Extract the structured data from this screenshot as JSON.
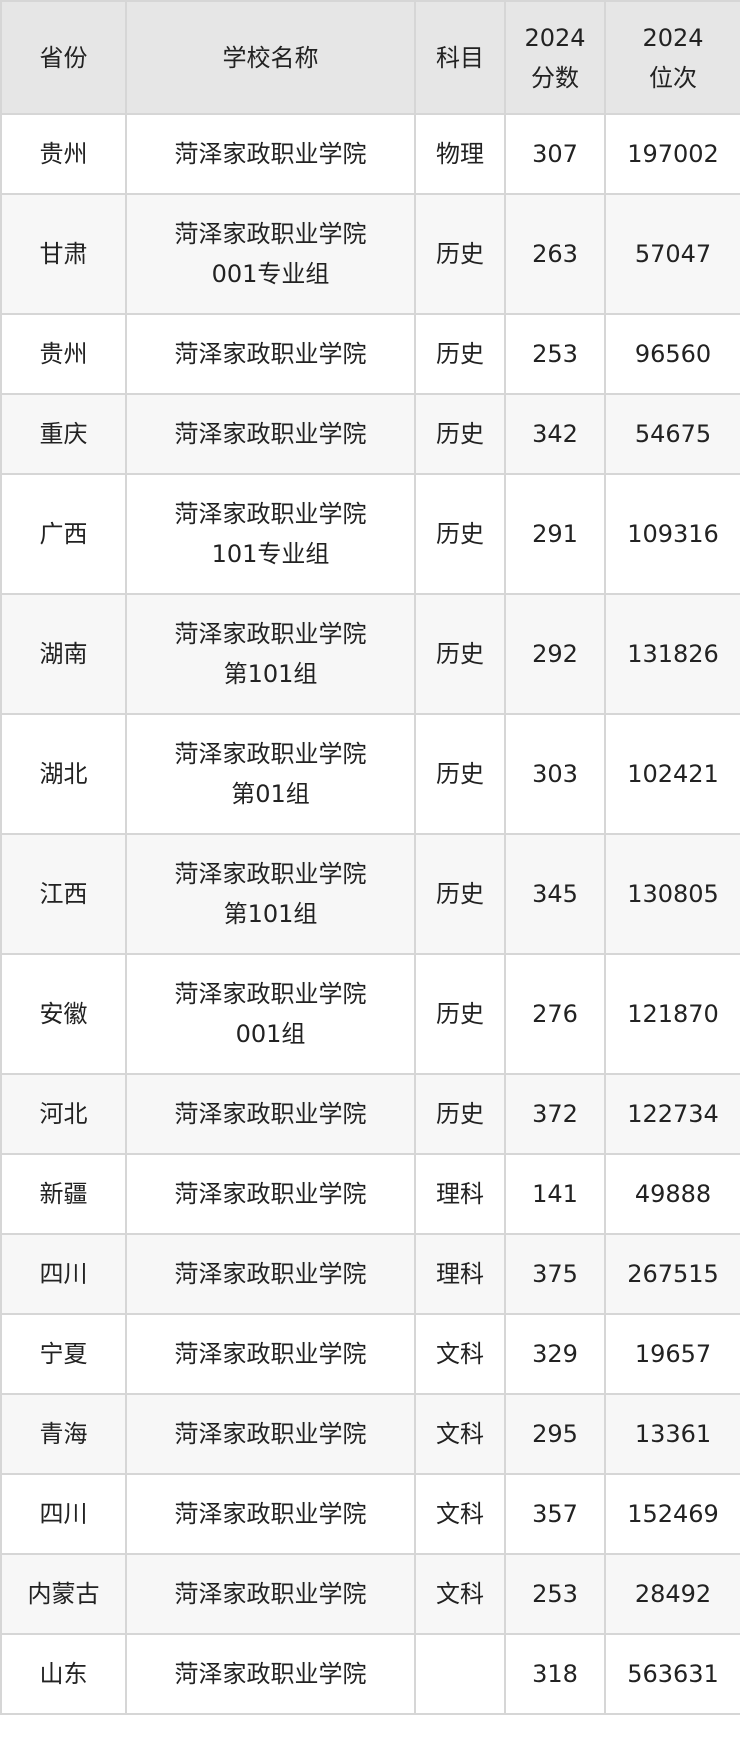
{
  "headers": {
    "province": "省份",
    "school": "学校名称",
    "subject": "科目",
    "score_year": "2024",
    "score": "分数",
    "rank_year": "2024",
    "rank": "位次"
  },
  "rows": [
    {
      "province": "贵州",
      "school": "菏泽家政职业学院",
      "group": "",
      "subject": "物理",
      "score": "307",
      "rank": "197002"
    },
    {
      "province": "甘肃",
      "school": "菏泽家政职业学院",
      "group": "001专业组",
      "subject": "历史",
      "score": "263",
      "rank": "57047"
    },
    {
      "province": "贵州",
      "school": "菏泽家政职业学院",
      "group": "",
      "subject": "历史",
      "score": "253",
      "rank": "96560"
    },
    {
      "province": "重庆",
      "school": "菏泽家政职业学院",
      "group": "",
      "subject": "历史",
      "score": "342",
      "rank": "54675"
    },
    {
      "province": "广西",
      "school": "菏泽家政职业学院",
      "group": "101专业组",
      "subject": "历史",
      "score": "291",
      "rank": "109316"
    },
    {
      "province": "湖南",
      "school": "菏泽家政职业学院",
      "group": "第101组",
      "subject": "历史",
      "score": "292",
      "rank": "131826"
    },
    {
      "province": "湖北",
      "school": "菏泽家政职业学院",
      "group": "第01组",
      "subject": "历史",
      "score": "303",
      "rank": "102421"
    },
    {
      "province": "江西",
      "school": "菏泽家政职业学院",
      "group": "第101组",
      "subject": "历史",
      "score": "345",
      "rank": "130805"
    },
    {
      "province": "安徽",
      "school": "菏泽家政职业学院",
      "group": "001组",
      "subject": "历史",
      "score": "276",
      "rank": "121870"
    },
    {
      "province": "河北",
      "school": "菏泽家政职业学院",
      "group": "",
      "subject": "历史",
      "score": "372",
      "rank": "122734"
    },
    {
      "province": "新疆",
      "school": "菏泽家政职业学院",
      "group": "",
      "subject": "理科",
      "score": "141",
      "rank": "49888"
    },
    {
      "province": "四川",
      "school": "菏泽家政职业学院",
      "group": "",
      "subject": "理科",
      "score": "375",
      "rank": "267515"
    },
    {
      "province": "宁夏",
      "school": "菏泽家政职业学院",
      "group": "",
      "subject": "文科",
      "score": "329",
      "rank": "19657"
    },
    {
      "province": "青海",
      "school": "菏泽家政职业学院",
      "group": "",
      "subject": "文科",
      "score": "295",
      "rank": "13361"
    },
    {
      "province": "四川",
      "school": "菏泽家政职业学院",
      "group": "",
      "subject": "文科",
      "score": "357",
      "rank": "152469"
    },
    {
      "province": "内蒙古",
      "school": "菏泽家政职业学院",
      "group": "",
      "subject": "文科",
      "score": "253",
      "rank": "28492"
    },
    {
      "province": "山东",
      "school": "菏泽家政职业学院",
      "group": "",
      "subject": "",
      "score": "318",
      "rank": "563631"
    }
  ]
}
